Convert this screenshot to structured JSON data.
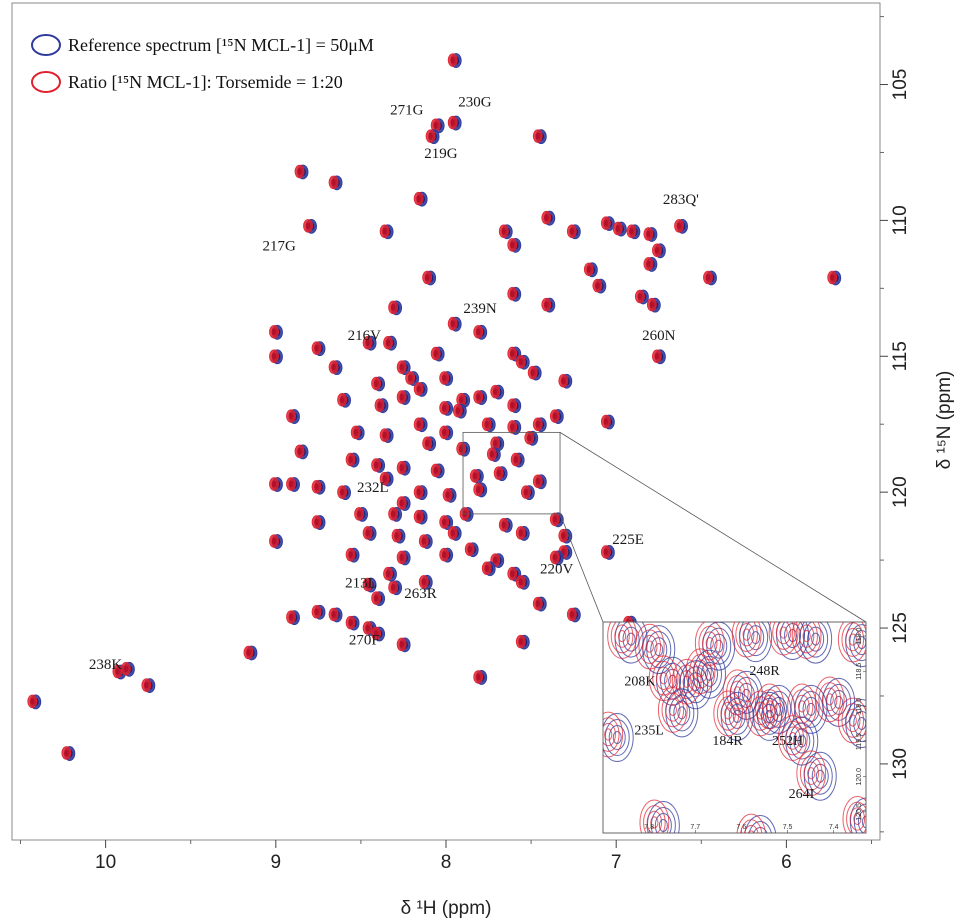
{
  "chart_data": {
    "type": "scatter",
    "xlabel": "δ ¹H (ppm)",
    "ylabel": "δ ¹⁵N (ppm)",
    "xlim": [
      10.55,
      5.45
    ],
    "ylim": [
      102,
      132.8
    ],
    "x_ticks": [
      "10",
      "9",
      "8",
      "7",
      "6"
    ],
    "x_tick_values": [
      10,
      9,
      8,
      7,
      6
    ],
    "y_ticks": [
      "105",
      "110",
      "115",
      "120",
      "125",
      "130"
    ],
    "y_tick_values": [
      105,
      110,
      115,
      120,
      125,
      130
    ],
    "y_axis_position": "right",
    "legend": {
      "position": "top-left",
      "entries": [
        {
          "label": "Reference spectrum [¹⁵N MCL-1] = 50μM",
          "color": "#2e3a9c"
        },
        {
          "label": "Ratio [¹⁵N MCL-1]: Torsemide = 1:20",
          "color": "#e0202c"
        }
      ]
    },
    "series": [
      {
        "name": "Reference spectrum [¹⁵N MCL-1] = 50μM",
        "color": "#2e3a9c"
      },
      {
        "name": "Ratio [¹⁵N MCL-1]: Torsemide = 1:20",
        "color": "#e0202c"
      }
    ],
    "peaks": [
      [
        7.95,
        104.1
      ],
      [
        8.05,
        106.5
      ],
      [
        7.95,
        106.4
      ],
      [
        8.08,
        106.9
      ],
      [
        7.45,
        106.9
      ],
      [
        8.85,
        108.2
      ],
      [
        8.65,
        108.6
      ],
      [
        8.15,
        109.2
      ],
      [
        8.8,
        110.2
      ],
      [
        8.35,
        110.4
      ],
      [
        7.4,
        109.9
      ],
      [
        7.05,
        110.1
      ],
      [
        6.98,
        110.3
      ],
      [
        6.9,
        110.4
      ],
      [
        6.8,
        110.5
      ],
      [
        7.65,
        110.4
      ],
      [
        7.6,
        110.9
      ],
      [
        7.25,
        110.4
      ],
      [
        6.62,
        110.2
      ],
      [
        6.75,
        111.1
      ],
      [
        6.8,
        111.6
      ],
      [
        7.15,
        111.8
      ],
      [
        7.1,
        112.4
      ],
      [
        6.45,
        112.1
      ],
      [
        5.72,
        112.1
      ],
      [
        8.1,
        112.1
      ],
      [
        7.6,
        112.7
      ],
      [
        7.4,
        113.1
      ],
      [
        6.85,
        112.8
      ],
      [
        6.78,
        113.1
      ],
      [
        8.3,
        113.2
      ],
      [
        7.95,
        113.8
      ],
      [
        7.8,
        114.1
      ],
      [
        9.0,
        114.1
      ],
      [
        8.75,
        114.7
      ],
      [
        8.45,
        114.5
      ],
      [
        8.33,
        114.5
      ],
      [
        8.05,
        114.9
      ],
      [
        7.6,
        114.9
      ],
      [
        6.75,
        115.0
      ],
      [
        7.55,
        115.2
      ],
      [
        9.0,
        115.0
      ],
      [
        8.65,
        115.4
      ],
      [
        8.25,
        115.4
      ],
      [
        8.2,
        115.8
      ],
      [
        8.0,
        115.8
      ],
      [
        7.48,
        115.6
      ],
      [
        7.7,
        116.3
      ],
      [
        7.3,
        115.9
      ],
      [
        8.4,
        116.0
      ],
      [
        8.25,
        116.5
      ],
      [
        8.15,
        116.2
      ],
      [
        7.8,
        116.5
      ],
      [
        7.9,
        116.6
      ],
      [
        8.0,
        116.9
      ],
      [
        7.92,
        117.0
      ],
      [
        7.6,
        116.8
      ],
      [
        8.6,
        116.6
      ],
      [
        8.38,
        116.8
      ],
      [
        8.9,
        117.2
      ],
      [
        8.15,
        117.5
      ],
      [
        8.0,
        117.8
      ],
      [
        7.75,
        117.5
      ],
      [
        7.6,
        117.6
      ],
      [
        7.45,
        117.5
      ],
      [
        7.35,
        117.2
      ],
      [
        7.05,
        117.4
      ],
      [
        8.52,
        117.8
      ],
      [
        8.35,
        117.9
      ],
      [
        8.1,
        118.2
      ],
      [
        7.9,
        118.4
      ],
      [
        7.7,
        118.2
      ],
      [
        7.5,
        118.0
      ],
      [
        7.72,
        118.6
      ],
      [
        7.58,
        118.8
      ],
      [
        8.85,
        118.5
      ],
      [
        8.55,
        118.8
      ],
      [
        8.4,
        119.0
      ],
      [
        8.25,
        119.1
      ],
      [
        8.05,
        119.2
      ],
      [
        7.82,
        119.4
      ],
      [
        7.68,
        119.3
      ],
      [
        7.45,
        119.6
      ],
      [
        9.0,
        119.7
      ],
      [
        8.9,
        119.7
      ],
      [
        8.75,
        119.8
      ],
      [
        8.6,
        120.0
      ],
      [
        8.35,
        119.5
      ],
      [
        8.25,
        120.4
      ],
      [
        8.15,
        120.0
      ],
      [
        7.98,
        120.1
      ],
      [
        7.8,
        119.9
      ],
      [
        7.52,
        120.0
      ],
      [
        8.5,
        120.8
      ],
      [
        8.3,
        120.8
      ],
      [
        8.15,
        120.9
      ],
      [
        8.0,
        121.1
      ],
      [
        7.88,
        120.8
      ],
      [
        7.65,
        121.2
      ],
      [
        7.35,
        121.0
      ],
      [
        8.75,
        121.1
      ],
      [
        8.45,
        121.5
      ],
      [
        8.28,
        121.6
      ],
      [
        8.12,
        121.8
      ],
      [
        7.95,
        121.5
      ],
      [
        7.55,
        121.5
      ],
      [
        7.3,
        121.6
      ],
      [
        9.0,
        121.8
      ],
      [
        8.55,
        122.3
      ],
      [
        8.25,
        122.4
      ],
      [
        8.0,
        122.3
      ],
      [
        7.85,
        122.1
      ],
      [
        7.7,
        122.5
      ],
      [
        7.75,
        122.8
      ],
      [
        7.6,
        123.0
      ],
      [
        7.3,
        122.2
      ],
      [
        7.05,
        122.2
      ],
      [
        7.35,
        122.4
      ],
      [
        8.45,
        123.4
      ],
      [
        8.3,
        123.5
      ],
      [
        8.12,
        123.3
      ],
      [
        8.33,
        123.0
      ],
      [
        7.55,
        123.3
      ],
      [
        7.45,
        124.1
      ],
      [
        8.4,
        123.9
      ],
      [
        8.75,
        124.4
      ],
      [
        8.9,
        124.6
      ],
      [
        8.65,
        124.5
      ],
      [
        8.55,
        124.8
      ],
      [
        8.45,
        125.0
      ],
      [
        8.25,
        125.6
      ],
      [
        8.4,
        125.2
      ],
      [
        9.15,
        125.9
      ],
      [
        7.55,
        125.5
      ],
      [
        7.25,
        124.5
      ],
      [
        6.92,
        124.8
      ],
      [
        7.8,
        126.8
      ],
      [
        9.92,
        126.6
      ],
      [
        9.87,
        126.5
      ],
      [
        9.75,
        127.1
      ],
      [
        10.42,
        127.7
      ],
      [
        10.22,
        129.6
      ]
    ],
    "annotations": [
      {
        "text": "271G",
        "x": 8.23,
        "y": 106.1
      },
      {
        "text": "230G",
        "x": 7.83,
        "y": 105.8
      },
      {
        "text": "219G",
        "x": 8.03,
        "y": 107.7
      },
      {
        "text": "283Q'",
        "x": 6.62,
        "y": 109.4
      },
      {
        "text": "217G",
        "x": 8.98,
        "y": 111.1
      },
      {
        "text": "239N",
        "x": 7.8,
        "y": 113.4
      },
      {
        "text": "216V",
        "x": 8.48,
        "y": 114.4
      },
      {
        "text": "260N",
        "x": 6.75,
        "y": 114.4
      },
      {
        "text": "232L",
        "x": 8.43,
        "y": 120.0
      },
      {
        "text": "225E",
        "x": 6.93,
        "y": 121.9
      },
      {
        "text": "220V",
        "x": 7.35,
        "y": 123.0
      },
      {
        "text": "213L",
        "x": 8.5,
        "y": 123.5
      },
      {
        "text": "263R",
        "x": 8.15,
        "y": 123.9
      },
      {
        "text": "270F",
        "x": 8.48,
        "y": 125.6
      },
      {
        "text": "238K",
        "x": 10.0,
        "y": 126.5
      }
    ],
    "inset": {
      "xlim": [
        7.9,
        7.33
      ],
      "ylim": [
        117.8,
        120.8
      ],
      "x_ticks": [
        "7.8",
        "7.7",
        "7.6",
        "7.5",
        "7.4"
      ],
      "x_tick_values": [
        7.8,
        7.7,
        7.6,
        7.5,
        7.4
      ],
      "y_ticks": [
        "118.0",
        "118.5",
        "119.0",
        "119.5",
        "120.0",
        "120.5"
      ],
      "y_tick_values": [
        118.0,
        118.5,
        119.0,
        119.5,
        120.0,
        120.5
      ],
      "peaks": [
        [
          7.85,
          118.0
        ],
        [
          7.79,
          118.15
        ],
        [
          7.66,
          118.1
        ],
        [
          7.58,
          117.98
        ],
        [
          7.5,
          117.95
        ],
        [
          7.45,
          118.0
        ],
        [
          7.35,
          118.05
        ],
        [
          7.76,
          118.6
        ],
        [
          7.71,
          118.65
        ],
        [
          7.68,
          118.5
        ],
        [
          7.6,
          118.8
        ],
        [
          7.53,
          119.0
        ],
        [
          7.46,
          119.0
        ],
        [
          7.4,
          118.9
        ],
        [
          7.74,
          119.05
        ],
        [
          7.62,
          119.1
        ],
        [
          7.55,
          119.1
        ],
        [
          7.48,
          119.45
        ],
        [
          7.44,
          119.95
        ],
        [
          7.35,
          119.2
        ],
        [
          7.88,
          119.4
        ],
        [
          7.78,
          120.65
        ],
        [
          7.57,
          120.85
        ],
        [
          7.34,
          120.6
        ]
      ],
      "annotations": [
        {
          "text": "208K",
          "x": 7.82,
          "y": 118.7
        },
        {
          "text": "235L",
          "x": 7.8,
          "y": 119.4
        },
        {
          "text": "248R",
          "x": 7.55,
          "y": 118.55
        },
        {
          "text": "184R",
          "x": 7.63,
          "y": 119.55
        },
        {
          "text": "252H",
          "x": 7.5,
          "y": 119.55
        },
        {
          "text": "264I",
          "x": 7.47,
          "y": 120.3
        }
      ]
    }
  }
}
